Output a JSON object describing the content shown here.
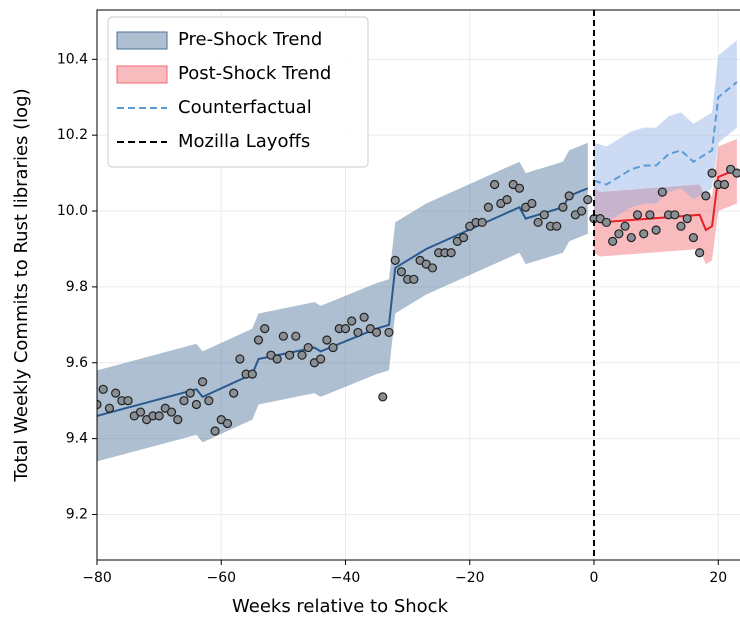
{
  "chart_data": {
    "type": "line",
    "xlabel": "Weeks relative to Shock",
    "ylabel": "Total Weekly Commits to Rust libraries (log)",
    "xlim": [
      -80,
      23.5
    ],
    "ylim": [
      9.08,
      10.53
    ],
    "xticks": [
      {
        "value": -80,
        "label": "−80"
      },
      {
        "value": -60,
        "label": "−60"
      },
      {
        "value": -40,
        "label": "−40"
      },
      {
        "value": -20,
        "label": "−20"
      },
      0,
      20
    ],
    "yticks": [
      9.2,
      9.4,
      9.6,
      9.8,
      {
        "value": 10,
        "label": "10.0"
      },
      10.2,
      10.4
    ],
    "grid": true,
    "legend": "upper left",
    "series": [
      {
        "name": "Pre-Shock Trend",
        "kind": "band",
        "color": "#2a5a90",
        "band_color": "#4a7099",
        "x": [
          -80,
          -64,
          -63,
          -55,
          -54,
          -45,
          -44,
          -35,
          -33,
          -32,
          -28,
          -27,
          -12,
          -11,
          -5,
          -4,
          -1
        ],
        "values": [
          9.46,
          9.53,
          9.51,
          9.57,
          9.61,
          9.64,
          9.63,
          9.69,
          9.7,
          9.85,
          9.89,
          9.9,
          10.01,
          9.98,
          10.01,
          10.04,
          10.06
        ],
        "lower": [
          9.34,
          9.41,
          9.39,
          9.45,
          9.49,
          9.52,
          9.51,
          9.57,
          9.58,
          9.73,
          9.77,
          9.78,
          9.89,
          9.86,
          9.89,
          9.92,
          9.94
        ],
        "upper": [
          9.58,
          9.65,
          9.63,
          9.69,
          9.73,
          9.76,
          9.75,
          9.81,
          9.82,
          9.97,
          10.01,
          10.02,
          10.13,
          10.1,
          10.13,
          10.16,
          10.18
        ]
      },
      {
        "name": "Post-Shock Trend",
        "kind": "band",
        "color": "#e8202a",
        "band_color": "#f06a70",
        "x": [
          0,
          1,
          17,
          18,
          19,
          20,
          23
        ],
        "values": [
          9.98,
          9.97,
          9.99,
          9.95,
          9.96,
          10.09,
          10.11
        ],
        "lower": [
          9.89,
          9.88,
          9.9,
          9.86,
          9.87,
          10.0,
          10.02
        ],
        "upper": [
          10.06,
          10.05,
          10.07,
          10.03,
          10.04,
          10.17,
          10.19
        ]
      },
      {
        "name": "Counterfactual",
        "kind": "dashed",
        "color": "#5b9bd5",
        "band_color": "#7fa6e0",
        "x": [
          0,
          2,
          4,
          6,
          8,
          10,
          12,
          14,
          16,
          18,
          19,
          20,
          23
        ],
        "values": [
          10.08,
          10.07,
          10.09,
          10.11,
          10.12,
          10.12,
          10.15,
          10.16,
          10.13,
          10.15,
          10.16,
          10.3,
          10.34
        ],
        "lower": [
          9.98,
          9.97,
          9.99,
          10.01,
          10.02,
          10.02,
          10.05,
          10.06,
          10.03,
          10.05,
          10.06,
          10.18,
          10.22
        ],
        "upper": [
          10.18,
          10.17,
          10.19,
          10.21,
          10.22,
          10.22,
          10.25,
          10.26,
          10.23,
          10.25,
          10.26,
          10.41,
          10.45
        ]
      },
      {
        "name": "Mozilla Layoffs",
        "kind": "vline",
        "color": "#000000",
        "x": 0
      }
    ],
    "observed": {
      "color": "#8a8f96",
      "x": [
        -80,
        -79,
        -78,
        -77,
        -76,
        -75,
        -74,
        -73,
        -72,
        -71,
        -70,
        -69,
        -68,
        -67,
        -66,
        -65,
        -64,
        -63,
        -62,
        -61,
        -60,
        -59,
        -58,
        -57,
        -56,
        -55,
        -54,
        -53,
        -52,
        -51,
        -50,
        -49,
        -48,
        -47,
        -46,
        -45,
        -44,
        -43,
        -42,
        -41,
        -40,
        -39,
        -38,
        -37,
        -36,
        -35,
        -34,
        -33,
        -32,
        -31,
        -30,
        -29,
        -28,
        -27,
        -26,
        -25,
        -24,
        -23,
        -22,
        -21,
        -20,
        -19,
        -18,
        -17,
        -16,
        -15,
        -14,
        -13,
        -12,
        -11,
        -10,
        -9,
        -8,
        -7,
        -6,
        -5,
        -4,
        -3,
        -2,
        -1,
        0,
        1,
        2,
        3,
        4,
        5,
        6,
        7,
        8,
        9,
        10,
        11,
        12,
        13,
        14,
        15,
        16,
        17,
        18,
        19,
        20,
        21,
        22,
        23
      ],
      "values": [
        9.49,
        9.53,
        9.48,
        9.52,
        9.5,
        9.5,
        9.46,
        9.47,
        9.45,
        9.46,
        9.46,
        9.48,
        9.47,
        9.45,
        9.5,
        9.52,
        9.49,
        9.55,
        9.5,
        9.42,
        9.45,
        9.44,
        9.52,
        9.61,
        9.57,
        9.57,
        9.66,
        9.69,
        9.62,
        9.61,
        9.67,
        9.62,
        9.67,
        9.62,
        9.64,
        9.6,
        9.61,
        9.66,
        9.64,
        9.69,
        9.69,
        9.71,
        9.68,
        9.72,
        9.69,
        9.68,
        9.51,
        9.68,
        9.87,
        9.84,
        9.82,
        9.82,
        9.87,
        9.86,
        9.85,
        9.89,
        9.89,
        9.89,
        9.92,
        9.93,
        9.96,
        9.97,
        9.97,
        10.01,
        10.07,
        10.02,
        10.03,
        10.07,
        10.06,
        10.01,
        10.02,
        9.97,
        9.99,
        9.96,
        9.96,
        10.01,
        10.04,
        9.99,
        10.0,
        10.03,
        9.98,
        9.98,
        9.97,
        9.92,
        9.94,
        9.96,
        9.93,
        9.99,
        9.94,
        9.99,
        9.95,
        10.05,
        9.99,
        9.99,
        9.96,
        9.98,
        9.93,
        9.89,
        10.04,
        10.1,
        10.07,
        10.07,
        10.11,
        10.1
      ]
    }
  }
}
